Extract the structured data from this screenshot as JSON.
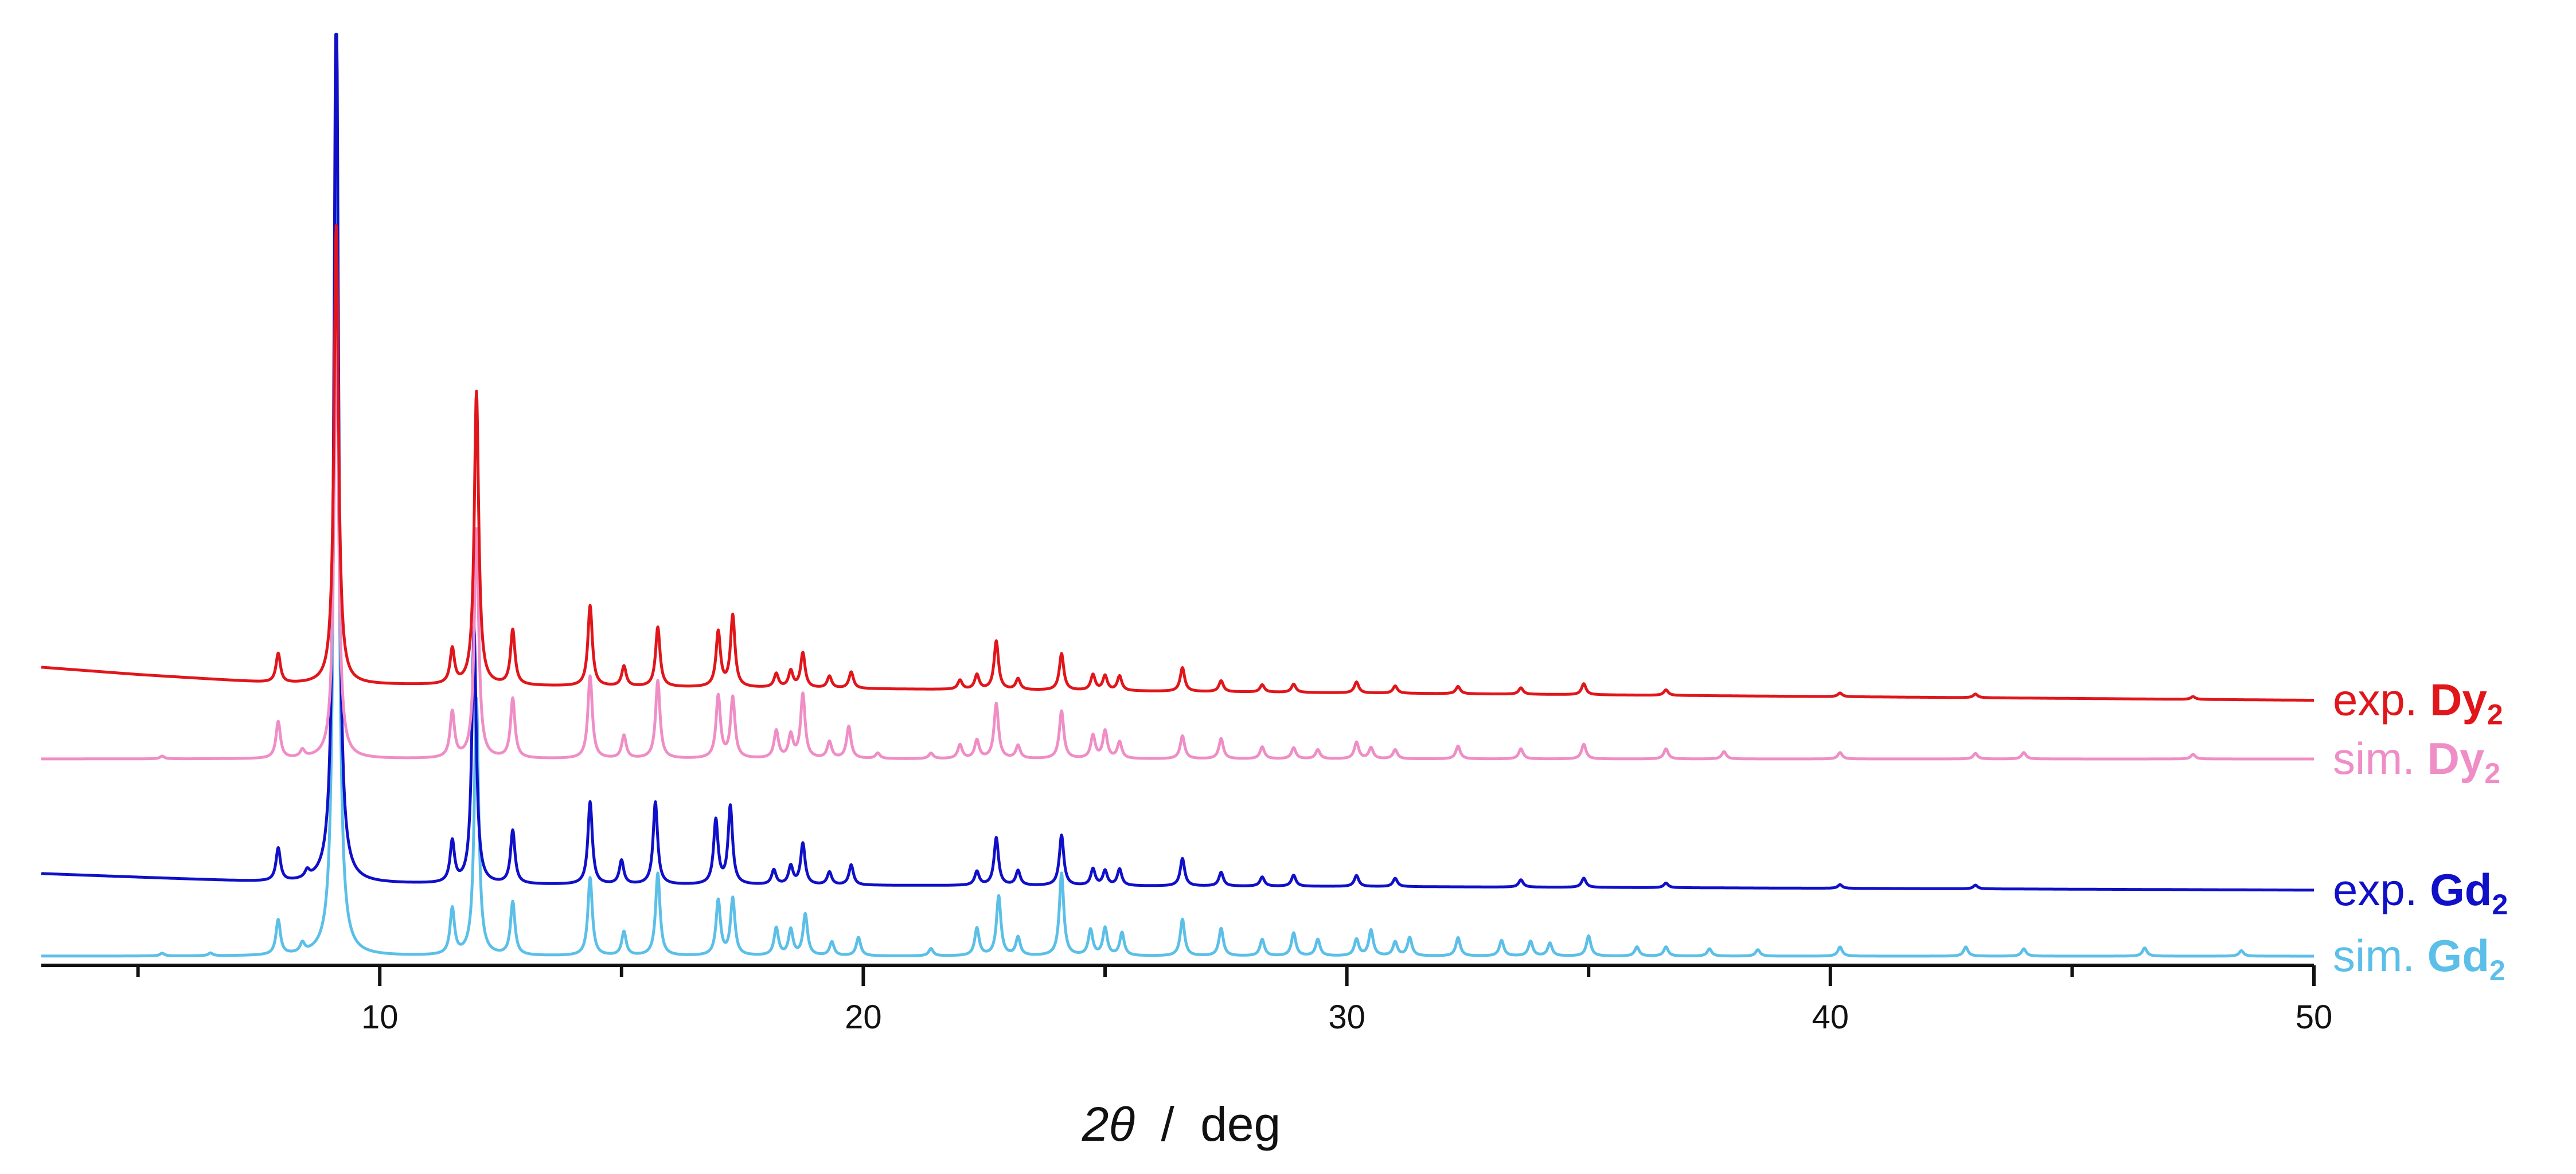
{
  "chart_data": {
    "type": "line",
    "xlabel": {
      "symbol": "2θ",
      "separator": "/",
      "unit": "deg"
    },
    "xlim": [
      3,
      50
    ],
    "xticks_major": [
      10,
      20,
      30,
      40,
      50
    ],
    "xticks_minor": [
      5,
      15,
      25,
      35,
      45
    ],
    "grid": false,
    "y_axis_visible": false,
    "legend_placement": "right, inline with traces",
    "series": [
      {
        "key": "exp_dy",
        "label_prefix": "exp.",
        "label_compound": "Dy",
        "label_subscript": "2",
        "color": "#e0161b",
        "offset": 0.315,
        "baseline": [
          [
            3,
            0.0
          ],
          [
            5,
            -0.008
          ],
          [
            8,
            -0.018
          ],
          [
            12,
            -0.02
          ],
          [
            30,
            -0.028
          ],
          [
            50,
            -0.036
          ]
        ],
        "peaks": [
          [
            7.9,
            0.032
          ],
          [
            9.1,
            0.5
          ],
          [
            11.5,
            0.038
          ],
          [
            12.0,
            0.32
          ],
          [
            12.75,
            0.06
          ],
          [
            14.35,
            0.088
          ],
          [
            15.05,
            0.022
          ],
          [
            15.75,
            0.065
          ],
          [
            17.0,
            0.06
          ],
          [
            17.3,
            0.078
          ],
          [
            18.2,
            0.015
          ],
          [
            18.5,
            0.018
          ],
          [
            18.75,
            0.038
          ],
          [
            19.3,
            0.013
          ],
          [
            19.75,
            0.018
          ],
          [
            22.0,
            0.01
          ],
          [
            22.35,
            0.016
          ],
          [
            22.75,
            0.053
          ],
          [
            23.2,
            0.012
          ],
          [
            24.1,
            0.04
          ],
          [
            24.75,
            0.017
          ],
          [
            25.0,
            0.016
          ],
          [
            25.3,
            0.016
          ],
          [
            26.6,
            0.026
          ],
          [
            27.4,
            0.012
          ],
          [
            28.25,
            0.008
          ],
          [
            28.9,
            0.009
          ],
          [
            30.2,
            0.012
          ],
          [
            31.0,
            0.008
          ],
          [
            32.3,
            0.008
          ],
          [
            33.6,
            0.007
          ],
          [
            34.9,
            0.012
          ],
          [
            36.6,
            0.006
          ],
          [
            40.2,
            0.004
          ],
          [
            43.0,
            0.004
          ],
          [
            47.5,
            0.003
          ]
        ]
      },
      {
        "key": "sim_dy",
        "label_prefix": "sim.",
        "label_compound": "Dy",
        "label_subscript": "2",
        "color": "#ef8ec6",
        "offset": 0.215,
        "baseline": [
          [
            3,
            0.0
          ],
          [
            50,
            0.0
          ]
        ],
        "peaks": [
          [
            5.5,
            0.003
          ],
          [
            7.9,
            0.04
          ],
          [
            8.4,
            0.008
          ],
          [
            9.1,
            0.48
          ],
          [
            11.5,
            0.05
          ],
          [
            12.0,
            0.25
          ],
          [
            12.75,
            0.065
          ],
          [
            14.35,
            0.09
          ],
          [
            15.05,
            0.025
          ],
          [
            15.75,
            0.085
          ],
          [
            17.0,
            0.068
          ],
          [
            17.3,
            0.066
          ],
          [
            18.2,
            0.03
          ],
          [
            18.5,
            0.025
          ],
          [
            18.75,
            0.07
          ],
          [
            19.3,
            0.018
          ],
          [
            19.7,
            0.035
          ],
          [
            20.3,
            0.006
          ],
          [
            21.4,
            0.006
          ],
          [
            22.0,
            0.015
          ],
          [
            22.35,
            0.02
          ],
          [
            22.75,
            0.06
          ],
          [
            23.2,
            0.014
          ],
          [
            24.1,
            0.052
          ],
          [
            24.75,
            0.025
          ],
          [
            25.0,
            0.03
          ],
          [
            25.3,
            0.018
          ],
          [
            26.6,
            0.025
          ],
          [
            27.4,
            0.022
          ],
          [
            28.25,
            0.013
          ],
          [
            28.9,
            0.012
          ],
          [
            29.4,
            0.01
          ],
          [
            30.2,
            0.018
          ],
          [
            30.5,
            0.012
          ],
          [
            31.0,
            0.01
          ],
          [
            32.3,
            0.014
          ],
          [
            33.6,
            0.011
          ],
          [
            34.9,
            0.016
          ],
          [
            36.6,
            0.011
          ],
          [
            37.8,
            0.008
          ],
          [
            40.2,
            0.007
          ],
          [
            43.0,
            0.006
          ],
          [
            44.0,
            0.007
          ],
          [
            47.5,
            0.005
          ]
        ]
      },
      {
        "key": "exp_gd",
        "label_prefix": "exp.",
        "label_compound": "Gd",
        "label_subscript": "2",
        "color": "#1010c8",
        "offset": 0.09,
        "baseline": [
          [
            3,
            0.0
          ],
          [
            5,
            -0.004
          ],
          [
            8,
            -0.01
          ],
          [
            12,
            -0.012
          ],
          [
            30,
            -0.014
          ],
          [
            50,
            -0.018
          ]
        ],
        "peaks": [
          [
            7.9,
            0.036
          ],
          [
            8.5,
            0.008
          ],
          [
            9.1,
            1.0
          ],
          [
            11.5,
            0.045
          ],
          [
            11.95,
            0.28
          ],
          [
            12.75,
            0.058
          ],
          [
            14.35,
            0.09
          ],
          [
            15.0,
            0.026
          ],
          [
            15.7,
            0.09
          ],
          [
            16.95,
            0.07
          ],
          [
            17.25,
            0.085
          ],
          [
            18.15,
            0.016
          ],
          [
            18.5,
            0.02
          ],
          [
            18.75,
            0.045
          ],
          [
            19.3,
            0.014
          ],
          [
            19.75,
            0.022
          ],
          [
            22.35,
            0.015
          ],
          [
            22.75,
            0.052
          ],
          [
            23.2,
            0.016
          ],
          [
            24.1,
            0.055
          ],
          [
            24.75,
            0.018
          ],
          [
            25.0,
            0.016
          ],
          [
            25.3,
            0.018
          ],
          [
            26.6,
            0.03
          ],
          [
            27.4,
            0.015
          ],
          [
            28.25,
            0.01
          ],
          [
            28.9,
            0.012
          ],
          [
            30.2,
            0.012
          ],
          [
            31.0,
            0.009
          ],
          [
            33.6,
            0.008
          ],
          [
            34.9,
            0.01
          ],
          [
            36.6,
            0.005
          ],
          [
            40.2,
            0.004
          ],
          [
            43.0,
            0.004
          ]
        ]
      },
      {
        "key": "sim_gd",
        "label_prefix": "sim.",
        "label_compound": "Gd",
        "label_subscript": "2",
        "color": "#5bbfe8",
        "offset": 0.0,
        "baseline": [
          [
            3,
            0.0
          ],
          [
            50,
            0.0
          ]
        ],
        "peaks": [
          [
            5.5,
            0.003
          ],
          [
            6.5,
            0.003
          ],
          [
            7.9,
            0.038
          ],
          [
            8.4,
            0.01
          ],
          [
            9.1,
            0.98
          ],
          [
            11.5,
            0.05
          ],
          [
            12.0,
            0.28
          ],
          [
            12.75,
            0.058
          ],
          [
            14.35,
            0.085
          ],
          [
            15.05,
            0.026
          ],
          [
            15.75,
            0.09
          ],
          [
            17.0,
            0.06
          ],
          [
            17.3,
            0.062
          ],
          [
            18.2,
            0.03
          ],
          [
            18.5,
            0.028
          ],
          [
            18.8,
            0.045
          ],
          [
            19.35,
            0.015
          ],
          [
            19.9,
            0.02
          ],
          [
            21.4,
            0.008
          ],
          [
            22.35,
            0.03
          ],
          [
            22.8,
            0.065
          ],
          [
            23.2,
            0.02
          ],
          [
            24.1,
            0.09
          ],
          [
            24.7,
            0.028
          ],
          [
            25.0,
            0.03
          ],
          [
            25.35,
            0.025
          ],
          [
            26.6,
            0.04
          ],
          [
            27.4,
            0.03
          ],
          [
            28.25,
            0.018
          ],
          [
            28.9,
            0.025
          ],
          [
            29.4,
            0.018
          ],
          [
            30.2,
            0.018
          ],
          [
            30.5,
            0.028
          ],
          [
            31.0,
            0.015
          ],
          [
            31.3,
            0.02
          ],
          [
            32.3,
            0.02
          ],
          [
            33.2,
            0.017
          ],
          [
            33.8,
            0.016
          ],
          [
            34.2,
            0.014
          ],
          [
            35.0,
            0.022
          ],
          [
            36.0,
            0.01
          ],
          [
            36.6,
            0.01
          ],
          [
            37.5,
            0.008
          ],
          [
            38.5,
            0.007
          ],
          [
            40.2,
            0.01
          ],
          [
            42.8,
            0.01
          ],
          [
            44.0,
            0.008
          ],
          [
            46.5,
            0.009
          ],
          [
            48.5,
            0.006
          ]
        ]
      }
    ]
  }
}
